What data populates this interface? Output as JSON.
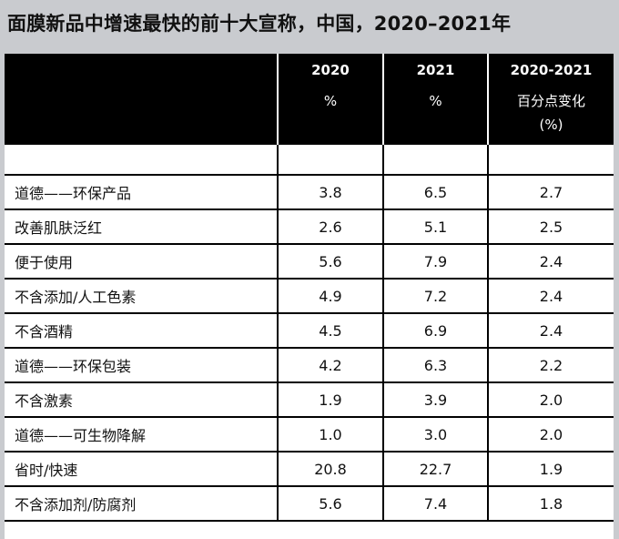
{
  "title": "面膜新品中增速最快的前十大宣称，中国，2020–2021年",
  "header": {
    "col_2020": "2020",
    "col_2020_unit": "%",
    "col_2021": "2021",
    "col_2021_unit": "%",
    "col_change": "2020-2021",
    "col_change_unit_line1": "百分点变化",
    "col_change_unit_line2": "(%)"
  },
  "rows": [
    {
      "claim": "道德——环保产品",
      "v2020": "3.8",
      "v2021": "6.5",
      "change": "2.7"
    },
    {
      "claim": "改善肌肤泛红",
      "v2020": "2.6",
      "v2021": "5.1",
      "change": "2.5"
    },
    {
      "claim": "便于使用",
      "v2020": "5.6",
      "v2021": "7.9",
      "change": "2.4"
    },
    {
      "claim": "不含添加/人工色素",
      "v2020": "4.9",
      "v2021": "7.2",
      "change": "2.4"
    },
    {
      "claim": "不含酒精",
      "v2020": "4.5",
      "v2021": "6.9",
      "change": "2.4"
    },
    {
      "claim": "道德——环保包装",
      "v2020": "4.2",
      "v2021": "6.3",
      "change": "2.2"
    },
    {
      "claim": "不含激素",
      "v2020": "1.9",
      "v2021": "3.9",
      "change": "2.0"
    },
    {
      "claim": "道德——可生物降解",
      "v2020": "1.0",
      "v2021": "3.0",
      "change": "2.0"
    },
    {
      "claim": "省时/快速",
      "v2020": "20.8",
      "v2021": "22.7",
      "change": "1.9"
    },
    {
      "claim": "不含添加剂/防腐剂",
      "v2020": "5.6",
      "v2021": "7.4",
      "change": "1.8"
    }
  ]
}
